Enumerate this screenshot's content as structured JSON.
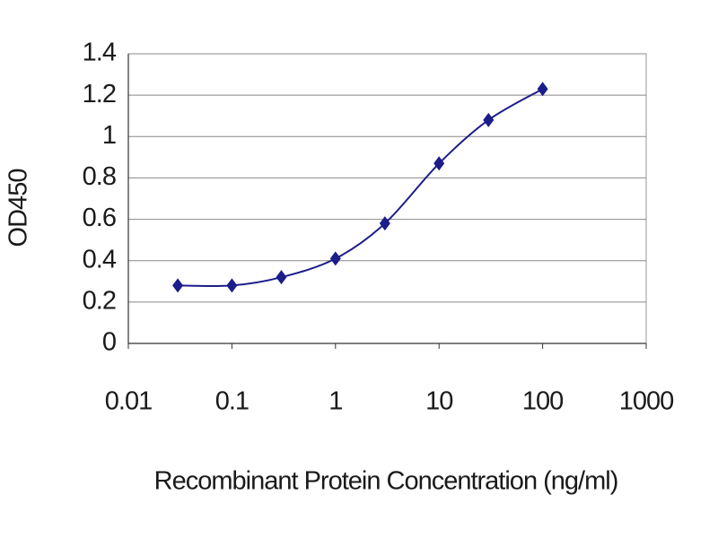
{
  "chart_data": {
    "type": "line",
    "x": [
      0.03,
      0.1,
      0.3,
      1,
      3,
      10,
      30,
      100
    ],
    "series": [
      {
        "color": "#1c1c8a",
        "values": [
          0.28,
          0.28,
          0.32,
          0.41,
          0.58,
          0.87,
          1.08,
          1.23
        ]
      }
    ],
    "xlabel": "Recombinant Protein Concentration (ng/ml)",
    "ylabel": "OD450",
    "xscale": "log",
    "xlim": [
      0.01,
      1000
    ],
    "xticks": [
      0.01,
      0.1,
      1,
      10,
      100,
      1000
    ],
    "ylim": [
      0,
      1.4
    ],
    "yticks": [
      0,
      0.2,
      0.4,
      0.6,
      0.8,
      1,
      1.2,
      1.4
    ],
    "grid": true,
    "smooth": true
  }
}
